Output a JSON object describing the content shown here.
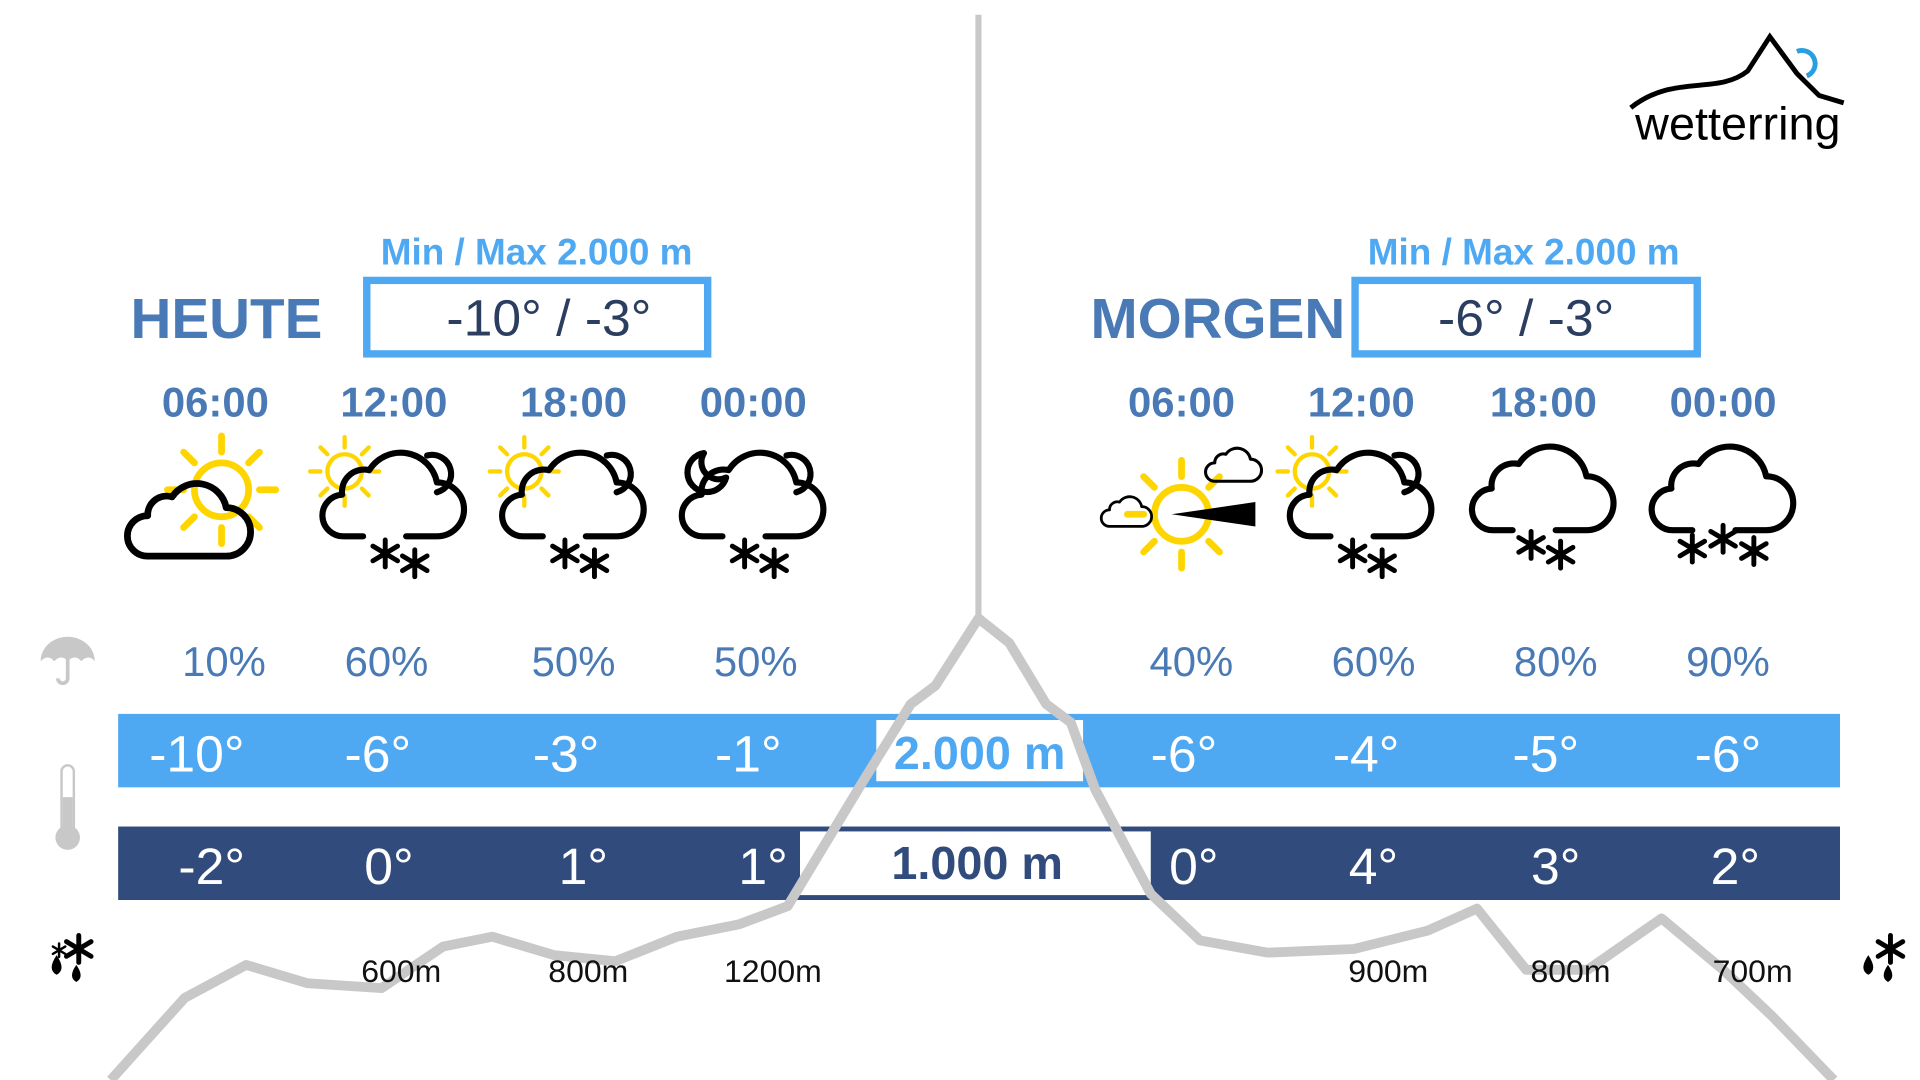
{
  "brand": {
    "name": "wetterring",
    "logo_colors": [
      "#000000",
      "#2a9fe0"
    ]
  },
  "colors": {
    "accent": "#4fa8f2",
    "dark_band": "#314c7c",
    "heading": "#4a7ab5",
    "mountain": "#c8c8c8"
  },
  "today": {
    "label": "HEUTE",
    "minmax_label": "Min / Max 2.000 m",
    "minmax_value": "-10° / -3°",
    "slots": [
      {
        "time": "06:00",
        "icon": "sun-behind-cloud-icon",
        "precip": "10%",
        "temp_2000": "-10°",
        "temp_1000": "-2°",
        "snowline": ""
      },
      {
        "time": "12:00",
        "icon": "sun-cloud-snow-icon",
        "precip": "60%",
        "temp_2000": "-6°",
        "temp_1000": "0°",
        "snowline": "600m"
      },
      {
        "time": "18:00",
        "icon": "sun-cloud-snow-icon",
        "precip": "50%",
        "temp_2000": "-3°",
        "temp_1000": "1°",
        "snowline": "800m"
      },
      {
        "time": "00:00",
        "icon": "moon-cloud-snow-icon",
        "precip": "50%",
        "temp_2000": "-1°",
        "temp_1000": "1°",
        "snowline": "1200m"
      }
    ]
  },
  "tomorrow": {
    "label": "MORGEN",
    "minmax_label": "Min / Max 2.000 m",
    "minmax_value": "-6° / -3°",
    "slots": [
      {
        "time": "06:00",
        "icon": "sun-wind-cloud-icon",
        "precip": "40%",
        "temp_2000": "-6°",
        "temp_1000": "0°",
        "snowline": ""
      },
      {
        "time": "12:00",
        "icon": "sun-cloud-snow-icon",
        "precip": "60%",
        "temp_2000": "-4°",
        "temp_1000": "4°",
        "snowline": "900m"
      },
      {
        "time": "18:00",
        "icon": "cloud-snow-icon",
        "precip": "80%",
        "temp_2000": "-5°",
        "temp_1000": "3°",
        "snowline": "800m"
      },
      {
        "time": "00:00",
        "icon": "cloud-heavy-snow-icon",
        "precip": "90%",
        "temp_2000": "-6°",
        "temp_1000": "2°",
        "snowline": "700m"
      }
    ]
  },
  "altitudes": {
    "high": "2.000 m",
    "low": "1.000 m"
  },
  "legend_icons": [
    "umbrella-icon",
    "thermometer-icon",
    "snow-rain-icon"
  ]
}
